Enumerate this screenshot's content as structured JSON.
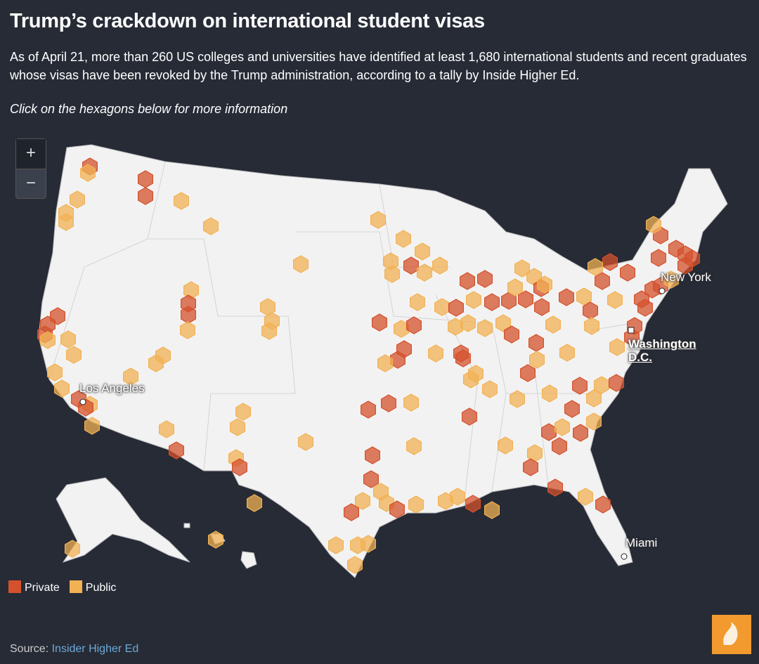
{
  "header": {
    "title": "Trump’s crackdown on international student visas",
    "subtitle": "As of April 21, more than 260 US colleges and universities have identified at least 1,680 international students and recent graduates whose visas have been revoked by the Trump administration, according to a tally by Inside Higher Ed.",
    "instruction": "Click on the hexagons below for more information"
  },
  "zoom": {
    "in": "+",
    "out": "−"
  },
  "cities": [
    "New York",
    "Washington D.C.",
    "Los Angeles",
    "Miami"
  ],
  "legend": [
    {
      "label": "Private",
      "color": "#d4512c"
    },
    {
      "label": "Public",
      "color": "#f2b254"
    }
  ],
  "source": {
    "label": "Source:",
    "link": "Insider Higher Ed"
  }
}
